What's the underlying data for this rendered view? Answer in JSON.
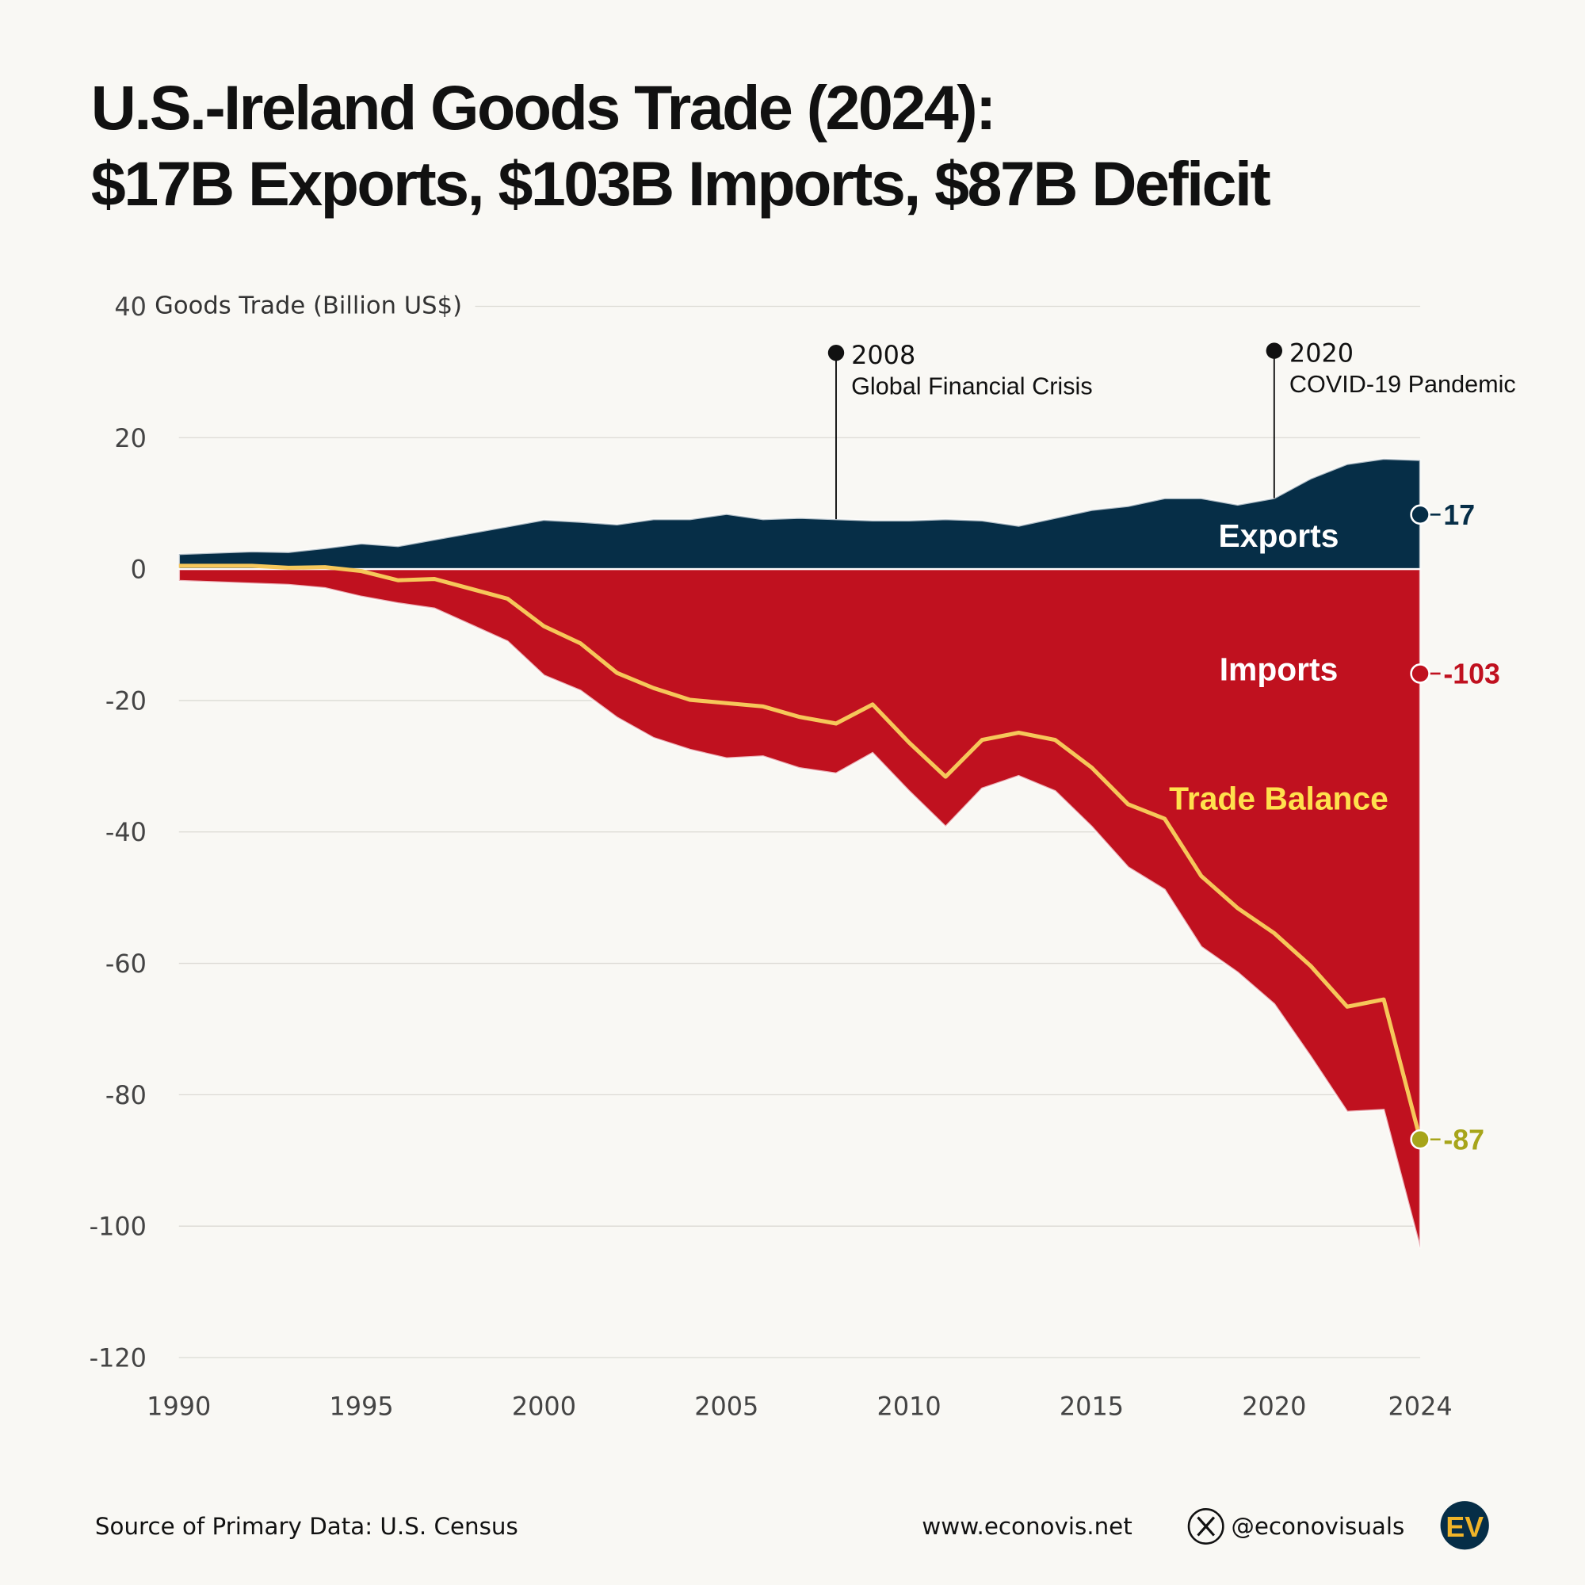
{
  "title_line1": "U.S.-Ireland Goods Trade (2024):",
  "title_line2": "$17B Exports, $103B Imports, $87B Deficit",
  "footer": {
    "source": "Source of Primary Data: U.S. Census",
    "website": "www.econovis.net",
    "handle": "@econovisuals",
    "logo_text": "EV",
    "x_icon": "x-logo-icon"
  },
  "colors": {
    "exports": "#062e47",
    "imports": "#c0111f",
    "balance": "#f6c75a",
    "balance_end": "#a7a51a",
    "background": "#f9f8f4"
  },
  "chart_data": {
    "type": "area",
    "title": "U.S.-Ireland Goods Trade (2024):",
    "ylabel": "Goods Trade (Billion US$)",
    "ylim": [
      -120,
      40
    ],
    "xlim": [
      1990,
      2024
    ],
    "grid": true,
    "yticks": [
      40,
      20,
      0,
      -20,
      -40,
      -60,
      -80,
      -100,
      -120
    ],
    "xticks": [
      1990,
      1995,
      2000,
      2005,
      2010,
      2015,
      2020,
      2024
    ],
    "x": [
      1990,
      1991,
      1992,
      1993,
      1994,
      1995,
      1996,
      1997,
      1998,
      1999,
      2000,
      2001,
      2002,
      2003,
      2004,
      2005,
      2006,
      2007,
      2008,
      2009,
      2010,
      2011,
      2012,
      2013,
      2014,
      2015,
      2016,
      2017,
      2018,
      2019,
      2020,
      2021,
      2022,
      2023,
      2024
    ],
    "series": [
      {
        "name": "Exports",
        "type": "area",
        "values": [
          2.3,
          2.5,
          2.7,
          2.6,
          3.2,
          3.9,
          3.5,
          4.5,
          5.5,
          6.5,
          7.5,
          7.2,
          6.8,
          7.6,
          7.6,
          8.4,
          7.6,
          7.8,
          7.6,
          7.4,
          7.4,
          7.6,
          7.4,
          6.6,
          7.8,
          9.0,
          9.6,
          10.8,
          10.8,
          9.8,
          10.8,
          13.8,
          16.0,
          16.8,
          16.6
        ],
        "end_label": "17"
      },
      {
        "name": "Imports",
        "type": "area",
        "values": [
          -1.8,
          -2.0,
          -2.2,
          -2.4,
          -2.9,
          -4.2,
          -5.2,
          -6.0,
          -8.5,
          -11.0,
          -16.2,
          -18.5,
          -22.6,
          -25.7,
          -27.5,
          -28.8,
          -28.5,
          -30.3,
          -31.1,
          -28.0,
          -33.8,
          -39.2,
          -33.4,
          -31.5,
          -33.8,
          -39.2,
          -45.4,
          -48.8,
          -57.5,
          -61.4,
          -66.2,
          -74.2,
          -82.6,
          -82.3,
          -103.4
        ],
        "end_label": "-103"
      },
      {
        "name": "Trade Balance",
        "type": "line",
        "values": [
          0.5,
          0.5,
          0.5,
          0.2,
          0.3,
          -0.3,
          -1.7,
          -1.5,
          -3.0,
          -4.5,
          -8.7,
          -11.3,
          -15.8,
          -18.1,
          -19.9,
          -20.4,
          -20.9,
          -22.5,
          -23.5,
          -20.6,
          -26.4,
          -31.6,
          -26.0,
          -24.9,
          -26.0,
          -30.2,
          -35.8,
          -38.0,
          -46.7,
          -51.6,
          -55.4,
          -60.4,
          -66.6,
          -65.5,
          -86.8
        ],
        "end_label": "-87"
      }
    ],
    "annotations": [
      {
        "year_label": "2008",
        "text": "Global Financial Crisis",
        "x": 2008
      },
      {
        "year_label": "2020",
        "text": "COVID-19 Pandemic",
        "x": 2020
      }
    ]
  }
}
